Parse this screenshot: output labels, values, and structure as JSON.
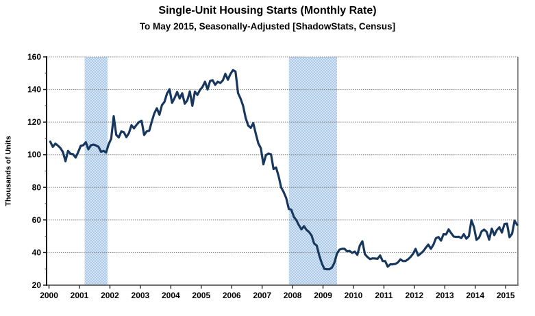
{
  "header": {
    "title": "Single-Unit Housing Starts (Monthly Rate)",
    "subtitle": "To May 2015, Seasonally-Adjusted [ShadowStats, Census]"
  },
  "chart_data": {
    "type": "line",
    "title": "Single-Unit Housing Starts (Monthly Rate)",
    "subtitle": "To May 2015, Seasonally-Adjusted [ShadowStats, Census]",
    "xlabel": "",
    "ylabel": "Thousands of Units",
    "ylim": [
      20,
      160
    ],
    "xlim": [
      1999.92,
      2015.4
    ],
    "y_ticks": [
      20,
      40,
      60,
      80,
      100,
      120,
      140,
      160
    ],
    "x_ticks": [
      2000,
      2001,
      2002,
      2003,
      2004,
      2005,
      2006,
      2007,
      2008,
      2009,
      2010,
      2011,
      2012,
      2013,
      2014,
      2015
    ],
    "grid": "horizontal-dashed",
    "legend": "none",
    "line_color": "#17375E",
    "gridline_color": "#7F7F7F",
    "recession_band_colors": [
      "#ADCBE9",
      "#D5E4F3"
    ],
    "recession_bands": [
      {
        "from": 2001.17,
        "to": 2001.92
      },
      {
        "from": 2007.88,
        "to": 2009.46
      }
    ],
    "series": [
      {
        "name": "Single-Unit Housing Starts",
        "frequency": "monthly",
        "start": "2000-01",
        "end": "2015-05",
        "values": [
          108.0,
          104.8,
          106.8,
          105.6,
          104.1,
          101.6,
          96.0,
          102.3,
          100.6,
          100.3,
          98.3,
          101.6,
          105.5,
          105.8,
          107.7,
          103.3,
          105.8,
          106.2,
          105.7,
          104.9,
          101.8,
          102.3,
          101.4,
          106.4,
          109.8,
          123.6,
          112.2,
          110.6,
          114.3,
          113.8,
          110.8,
          113.3,
          118.1,
          116.2,
          118.3,
          120.1,
          120.8,
          112.1,
          114.3,
          114.7,
          120.4,
          125.4,
          128.5,
          124.5,
          130.4,
          132.4,
          137.5,
          140.1,
          131.8,
          134.8,
          138.5,
          134.5,
          137.7,
          131.3,
          133.3,
          138.8,
          130.0,
          138.7,
          136.7,
          139.7,
          141.6,
          144.8,
          140.0,
          145.2,
          145.7,
          142.9,
          144.8,
          144.0,
          145.6,
          149.6,
          146.0,
          149.5,
          151.9,
          151.0,
          137.8,
          134.4,
          130.0,
          122.6,
          117.9,
          116.5,
          119.4,
          112.9,
          107.0,
          104.0,
          94.1,
          99.8,
          100.7,
          100.3,
          91.2,
          92.2,
          86.9,
          80.0,
          77.1,
          73.3,
          66.8,
          66.2,
          61.9,
          59.8,
          56.7,
          54.2,
          56.2,
          53.9,
          52.6,
          50.4,
          45.5,
          44.3,
          38.3,
          33.5,
          30.0,
          29.8,
          29.8,
          30.7,
          33.8,
          39.4,
          41.8,
          42.3,
          42.3,
          40.7,
          41.0,
          39.8,
          40.6,
          38.6,
          44.3,
          46.9,
          39.0,
          37.3,
          36.0,
          36.5,
          36.4,
          36.2,
          38.2,
          34.8,
          34.8,
          31.3,
          32.8,
          32.8,
          33.0,
          33.9,
          35.8,
          34.8,
          34.8,
          35.8,
          37.3,
          39.2,
          42.3,
          38.1,
          39.4,
          40.8,
          43.0,
          44.9,
          42.3,
          44.8,
          48.8,
          49.5,
          47.3,
          51.3,
          51.1,
          54.2,
          51.9,
          49.8,
          49.6,
          49.7,
          48.9,
          51.3,
          48.5,
          50.1,
          59.8,
          55.6,
          47.8,
          49.1,
          52.9,
          54.1,
          52.7,
          47.9,
          54.7,
          50.7,
          53.8,
          55.5,
          52.3,
          57.5,
          57.8,
          49.4,
          51.5,
          59.5,
          57.0
        ]
      }
    ]
  }
}
